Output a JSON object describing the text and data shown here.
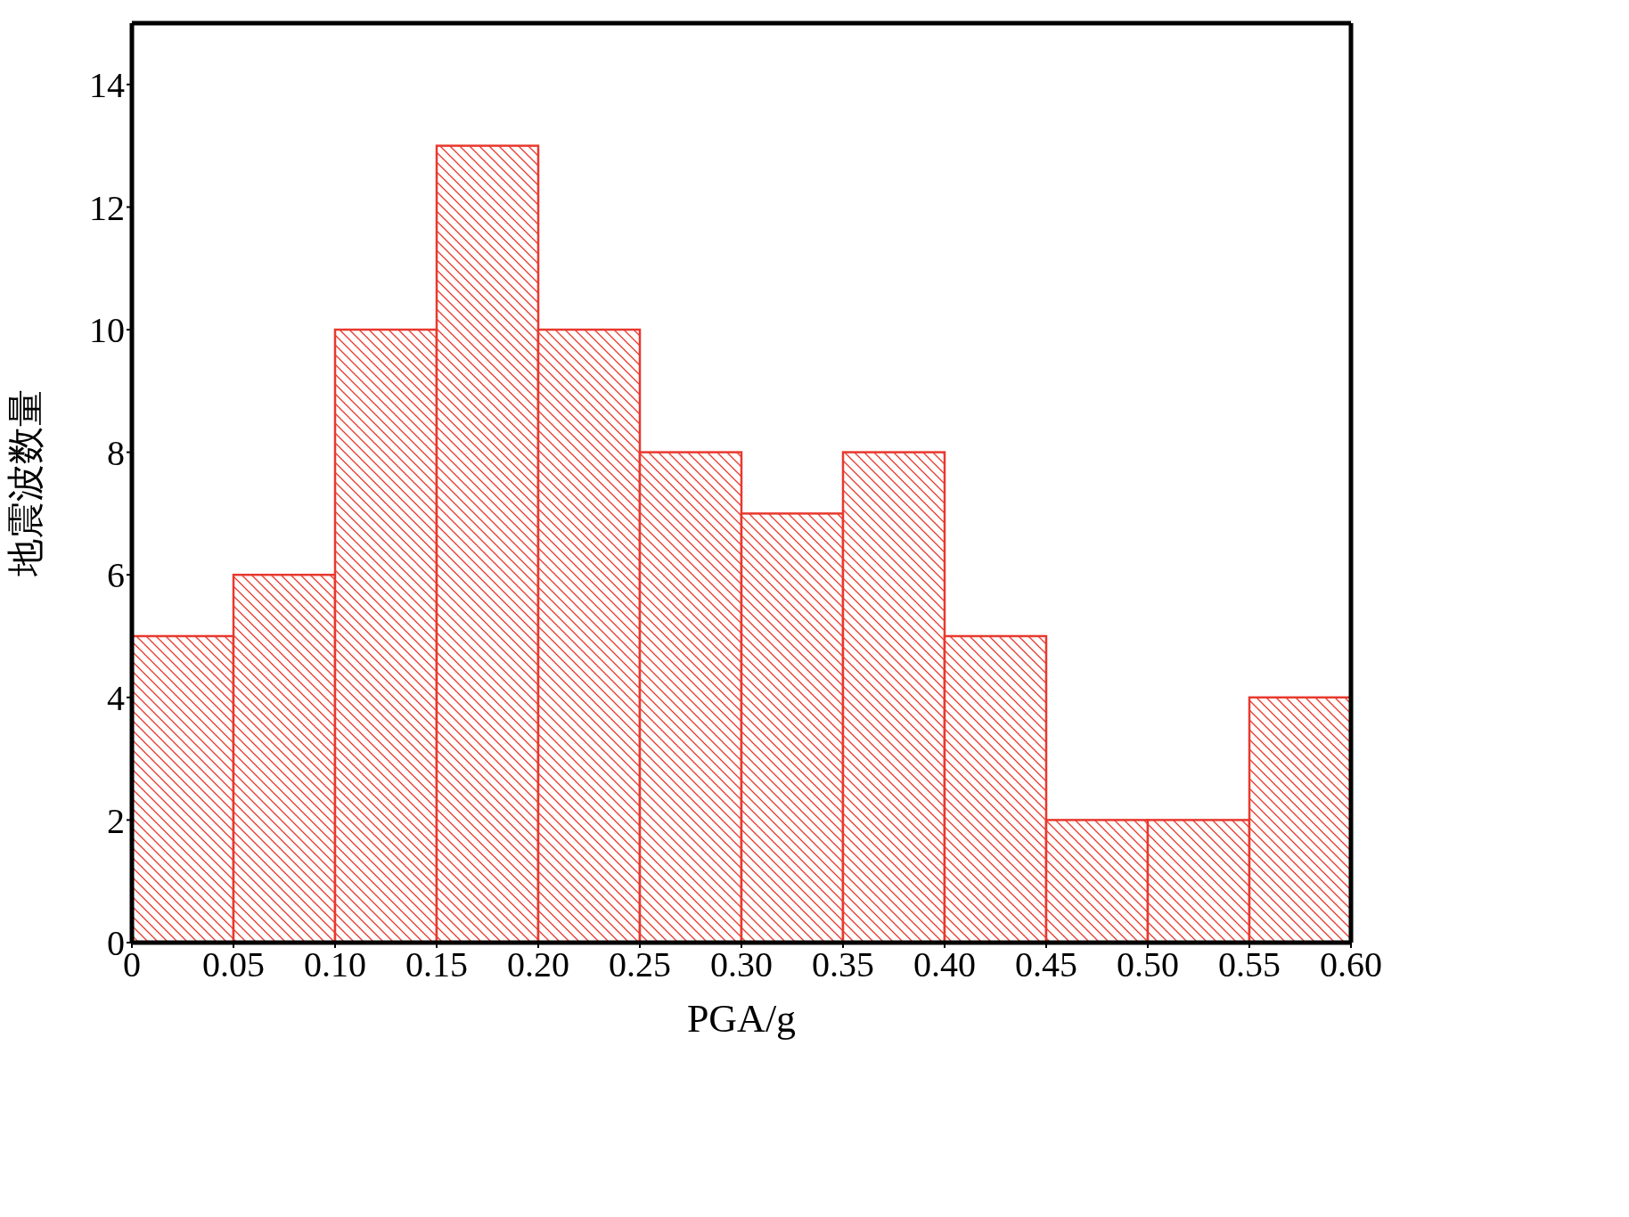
{
  "chart_data": {
    "type": "histogram",
    "xlabel": "PGA/g",
    "ylabel": "地震波数量",
    "bins": [
      0,
      0.05,
      0.1,
      0.15,
      0.2,
      0.25,
      0.3,
      0.35,
      0.4,
      0.45,
      0.5,
      0.55,
      0.6
    ],
    "values": [
      5,
      6,
      10,
      13,
      10,
      8,
      7,
      8,
      5,
      2,
      2,
      4
    ],
    "color": "#e8392e",
    "xlim": [
      0,
      0.6
    ],
    "xticks": [
      0,
      0.05,
      {
        "value": 0.1,
        "label": "0.10"
      },
      0.15,
      {
        "value": 0.2,
        "label": "0.20"
      },
      0.25,
      {
        "value": 0.3,
        "label": "0.30"
      },
      0.35,
      {
        "value": 0.4,
        "label": "0.40"
      },
      0.45,
      {
        "value": 0.5,
        "label": "0.50"
      },
      0.55,
      {
        "value": 0.6,
        "label": "0.60"
      }
    ],
    "ylim": [
      0,
      15
    ],
    "yticks": [
      0,
      2,
      4,
      6,
      8,
      10,
      12,
      14
    ],
    "grid": false,
    "legend": false
  }
}
